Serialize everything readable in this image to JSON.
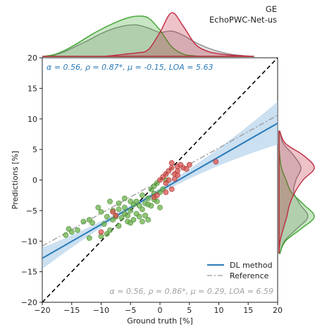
{
  "figure": {
    "title_line1": "GE",
    "title_line2": "EchoPWC-Net-us"
  },
  "colors": {
    "dl_line": "#2a7ab8",
    "dl_band": "#a9cbe8",
    "reference": "#999999",
    "identity": "#000000",
    "green_points": "#6ab04c",
    "red_points": "#d9534f",
    "green_kde": "#3aa32b",
    "red_kde": "#c0283e",
    "gray_kde": "#8c8c8c",
    "stats_top": "#2a7ab8",
    "stats_bottom": "#a0a0a0"
  },
  "chart_data": {
    "type": "scatter",
    "xlabel": "Ground truth [%]",
    "ylabel": "Predictions [%]",
    "xlim": [
      -20,
      20
    ],
    "ylim": [
      -20,
      20
    ],
    "xticks": [
      "−20",
      "−15",
      "−10",
      "−5",
      "0",
      "5",
      "10",
      "15",
      "20"
    ],
    "xtick_values": [
      -20,
      -15,
      -10,
      -5,
      0,
      5,
      10,
      15,
      20
    ],
    "yticks": [
      "20",
      "15",
      "10",
      "5",
      "0",
      "−5",
      "−10",
      "−15",
      "−20"
    ],
    "ytick_values": [
      20,
      15,
      10,
      5,
      0,
      -5,
      -10,
      -15,
      -20
    ],
    "grid": false,
    "legend_position": "lower-right",
    "annotations": {
      "stats_top": "α = 0.56, ρ = 0.87*, μ = -0.15, LOA = 5.63",
      "stats_bottom": "α = 0.56, ρ = 0.86*, μ = 0.29, LOA = 6.59"
    },
    "series": [
      {
        "name": "DL method",
        "type": "line",
        "x": [
          -20,
          20
        ],
        "y": [
          -12.8,
          9.3
        ]
      },
      {
        "name": "Reference",
        "type": "line",
        "x": [
          -20,
          20
        ],
        "y": [
          -10.8,
          10.6
        ]
      },
      {
        "type": "line",
        "x": [
          -20,
          20
        ],
        "y": [
          -20,
          20
        ]
      },
      {
        "type": "scatter",
        "points": [
          [
            -16,
            -9
          ],
          [
            -15,
            -8.5
          ],
          [
            -15.5,
            -8
          ],
          [
            -14,
            -8.2
          ],
          [
            -13,
            -6.8
          ],
          [
            -12,
            -6.5
          ],
          [
            -11.5,
            -7
          ],
          [
            -10.5,
            -4.5
          ],
          [
            -10,
            -5.2
          ],
          [
            -9.5,
            -7.2
          ],
          [
            -9,
            -6
          ],
          [
            -8.5,
            -8.2
          ],
          [
            -8,
            -5
          ],
          [
            -8,
            -6.5
          ],
          [
            -7.5,
            -6
          ],
          [
            -7,
            -4.8
          ],
          [
            -7,
            -7.5
          ],
          [
            -6.5,
            -6.2
          ],
          [
            -6,
            -4.5
          ],
          [
            -6,
            -5.5
          ],
          [
            -5.5,
            -5.8
          ],
          [
            -5.5,
            -6.8
          ],
          [
            -5,
            -5
          ],
          [
            -5,
            -7
          ],
          [
            -4.5,
            -4
          ],
          [
            -4.5,
            -6.5
          ],
          [
            -4,
            -5.5
          ],
          [
            -4,
            -3.5
          ],
          [
            -3.5,
            -6
          ],
          [
            -3.5,
            -4.2
          ],
          [
            -3,
            -4.8
          ],
          [
            -3,
            -2.5
          ],
          [
            -2.5,
            -3.8
          ],
          [
            -2.5,
            -5.8
          ],
          [
            -2,
            -4
          ],
          [
            -2,
            -3
          ],
          [
            -1.5,
            -1.5
          ],
          [
            -1.5,
            -4.2
          ],
          [
            -1,
            -2.2
          ],
          [
            -1,
            -1
          ],
          [
            -0.5,
            -3.5
          ],
          [
            -0.5,
            -0.5
          ],
          [
            0,
            -2
          ],
          [
            0,
            -4.5
          ],
          [
            0.5,
            -1.5
          ],
          [
            1,
            0
          ],
          [
            -6,
            -3
          ],
          [
            -8.5,
            -3.5
          ],
          [
            -9,
            -8.8
          ],
          [
            -10,
            -9.2
          ],
          [
            -12,
            -9.5
          ],
          [
            -7,
            -3.8
          ],
          [
            -5,
            -3.5
          ],
          [
            -3,
            -6.8
          ],
          [
            -1,
            -3.2
          ],
          [
            -2,
            -6.5
          ]
        ]
      },
      {
        "type": "scatter",
        "points": [
          [
            -10,
            -8.5
          ],
          [
            -8,
            -5.2
          ],
          [
            -7.5,
            -5.8
          ],
          [
            -1,
            -2.8
          ],
          [
            -0.5,
            -2.5
          ],
          [
            0.5,
            0.5
          ],
          [
            1,
            1
          ],
          [
            1,
            -0.5
          ],
          [
            1.5,
            0
          ],
          [
            1.5,
            1.5
          ],
          [
            2,
            2
          ],
          [
            2,
            -1.5
          ],
          [
            2.5,
            1
          ],
          [
            2.5,
            0.2
          ],
          [
            3,
            2.2
          ],
          [
            3,
            1.5
          ],
          [
            3.5,
            2.5
          ],
          [
            4,
            2
          ],
          [
            4.5,
            1.8
          ],
          [
            5,
            2.5
          ],
          [
            1,
            -2
          ],
          [
            0,
            0
          ],
          [
            9.5,
            3
          ],
          [
            2,
            2.8
          ],
          [
            3,
            0.8
          ]
        ]
      }
    ],
    "marginal_x": {
      "x": [
        -20,
        -18,
        -16,
        -14,
        -12,
        -10,
        -8,
        -6,
        -4,
        -2,
        0,
        2,
        4,
        6,
        8,
        10,
        12,
        14,
        16
      ],
      "green": [
        0.0,
        0.04,
        0.15,
        0.3,
        0.47,
        0.62,
        0.75,
        0.86,
        0.92,
        0.88,
        0.6,
        0.22,
        0.05,
        0.01,
        0.0,
        0.0,
        0.0,
        0.0,
        0.0
      ],
      "red": [
        0.0,
        0.0,
        0.0,
        0.0,
        0.0,
        0.0,
        0.02,
        0.05,
        0.08,
        0.15,
        0.55,
        1.0,
        0.68,
        0.28,
        0.12,
        0.06,
        0.03,
        0.01,
        0.0
      ],
      "gray": [
        0.0,
        0.03,
        0.12,
        0.25,
        0.38,
        0.52,
        0.63,
        0.7,
        0.72,
        0.65,
        0.55,
        0.58,
        0.48,
        0.32,
        0.2,
        0.11,
        0.05,
        0.02,
        0.0
      ]
    },
    "marginal_y": {
      "y": [
        -12,
        -10,
        -8,
        -6,
        -4,
        -2,
        0,
        2,
        4,
        6,
        8
      ],
      "green": [
        0.02,
        0.18,
        0.62,
        1.0,
        0.7,
        0.35,
        0.2,
        0.07,
        0.02,
        0.0,
        0.0
      ],
      "red": [
        0.0,
        0.03,
        0.12,
        0.22,
        0.3,
        0.45,
        0.68,
        1.0,
        0.7,
        0.18,
        0.02
      ],
      "gray": [
        0.03,
        0.15,
        0.5,
        0.82,
        0.6,
        0.42,
        0.48,
        0.62,
        0.42,
        0.12,
        0.02
      ]
    }
  }
}
